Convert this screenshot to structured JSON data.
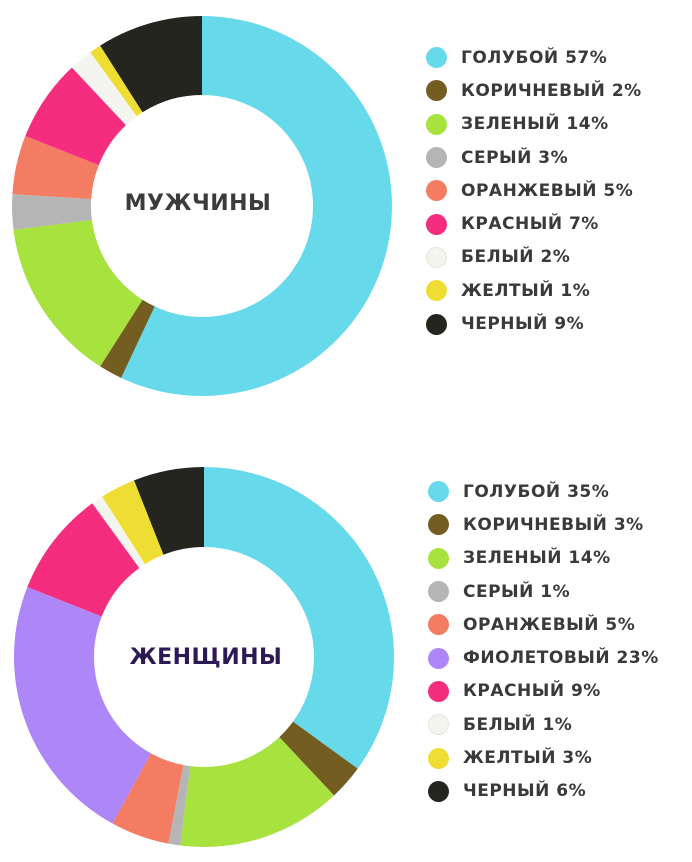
{
  "chart_data": [
    {
      "type": "pie",
      "center_label": "МУЖЧИНЫ",
      "center_label_color": "#3b3b3b",
      "slices": [
        {
          "label": "ГОЛУБОЙ 57%",
          "value": 57,
          "color": "#66d9ea"
        },
        {
          "label": "КОРИЧНЕВЫЙ 2%",
          "value": 2,
          "color": "#735d20"
        },
        {
          "label": "ЗЕЛЕНЫЙ 14%",
          "value": 14,
          "color": "#a7e23f"
        },
        {
          "label": "СЕРЫЙ 3%",
          "value": 3,
          "color": "#b5b5b5"
        },
        {
          "label": "ОРАНЖЕВЫЙ 5%",
          "value": 5,
          "color": "#f47c62"
        },
        {
          "label": "КРАСНЫЙ 7%",
          "value": 7,
          "color": "#f42d7e"
        },
        {
          "label": "БЕЛЫЙ 2%",
          "value": 2,
          "color": "#f5f5ef"
        },
        {
          "label": "ЖЕЛТЫЙ 1%",
          "value": 1,
          "color": "#eedd33"
        },
        {
          "label": "ЧЕРНЫЙ 9%",
          "value": 9,
          "color": "#252520"
        }
      ]
    },
    {
      "type": "pie",
      "center_label": "ЖЕНЩИНЫ",
      "center_label_color": "#2d1a55",
      "slices": [
        {
          "label": "ГОЛУБОЙ 35%",
          "value": 35,
          "color": "#66d9ea"
        },
        {
          "label": "КОРИЧНЕВЫЙ 3%",
          "value": 3,
          "color": "#735d20"
        },
        {
          "label": "ЗЕЛЕНЫЙ 14%",
          "value": 14,
          "color": "#a7e23f"
        },
        {
          "label": "СЕРЫЙ 1%",
          "value": 1,
          "color": "#b5b5b5"
        },
        {
          "label": "ОРАНЖЕВЫЙ 5%",
          "value": 5,
          "color": "#f47c62"
        },
        {
          "label": "ФИОЛЕТОВЫЙ 23%",
          "value": 23,
          "color": "#ad86f7"
        },
        {
          "label": "КРАСНЫЙ 9%",
          "value": 9,
          "color": "#f42d7e"
        },
        {
          "label": "БЕЛЫЙ 1%",
          "value": 1,
          "color": "#f5f5ef"
        },
        {
          "label": "ЖЕЛТЫЙ 3%",
          "value": 3,
          "color": "#eedd33"
        },
        {
          "label": "ЧЕРНЫЙ 6%",
          "value": 6,
          "color": "#252520"
        }
      ]
    }
  ]
}
